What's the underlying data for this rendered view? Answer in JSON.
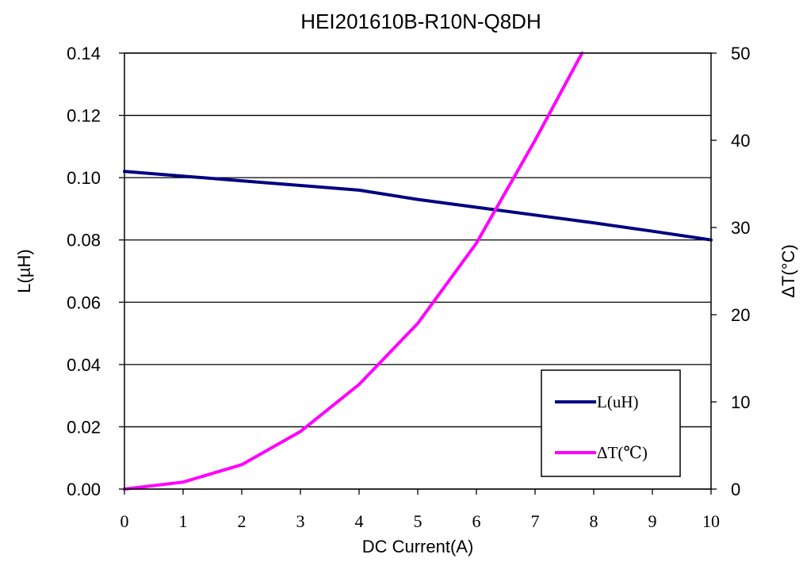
{
  "chart_data": {
    "type": "line",
    "title": "HEI201610B-R10N-Q8DH",
    "xlabel": "DC Current(A)",
    "ylabel_left": "L(µH)",
    "ylabel_right": "ΔT(°C)",
    "xlim": [
      0,
      10
    ],
    "ylim_left": [
      0,
      0.14
    ],
    "ylim_right": [
      0,
      50
    ],
    "x_ticks": [
      "0",
      "1",
      "2",
      "3",
      "4",
      "5",
      "6",
      "7",
      "8",
      "9",
      "10"
    ],
    "y_left_ticks": [
      "0.00",
      "0.02",
      "0.04",
      "0.06",
      "0.08",
      "0.10",
      "0.12",
      "0.14"
    ],
    "y_right_ticks": [
      "0",
      "10",
      "20",
      "30",
      "40",
      "50"
    ],
    "grid": "horizontal",
    "legend_position": "bottom-right",
    "series": [
      {
        "name": "L(uH)",
        "axis": "left",
        "color": "#000080",
        "x": [
          0,
          1,
          2,
          3,
          4,
          5,
          6,
          7,
          8,
          9,
          10
        ],
        "y": [
          0.102,
          0.1005,
          0.099,
          0.0975,
          0.096,
          0.093,
          0.0905,
          0.088,
          0.0855,
          0.0828,
          0.08
        ]
      },
      {
        "name": "ΔT(℃)",
        "axis": "right",
        "color": "#ff00ff",
        "x": [
          0,
          1,
          2,
          3,
          4,
          5,
          6,
          7,
          7.8
        ],
        "y": [
          0,
          0.8,
          2.8,
          6.6,
          12,
          19,
          28.2,
          40,
          50
        ]
      }
    ]
  }
}
